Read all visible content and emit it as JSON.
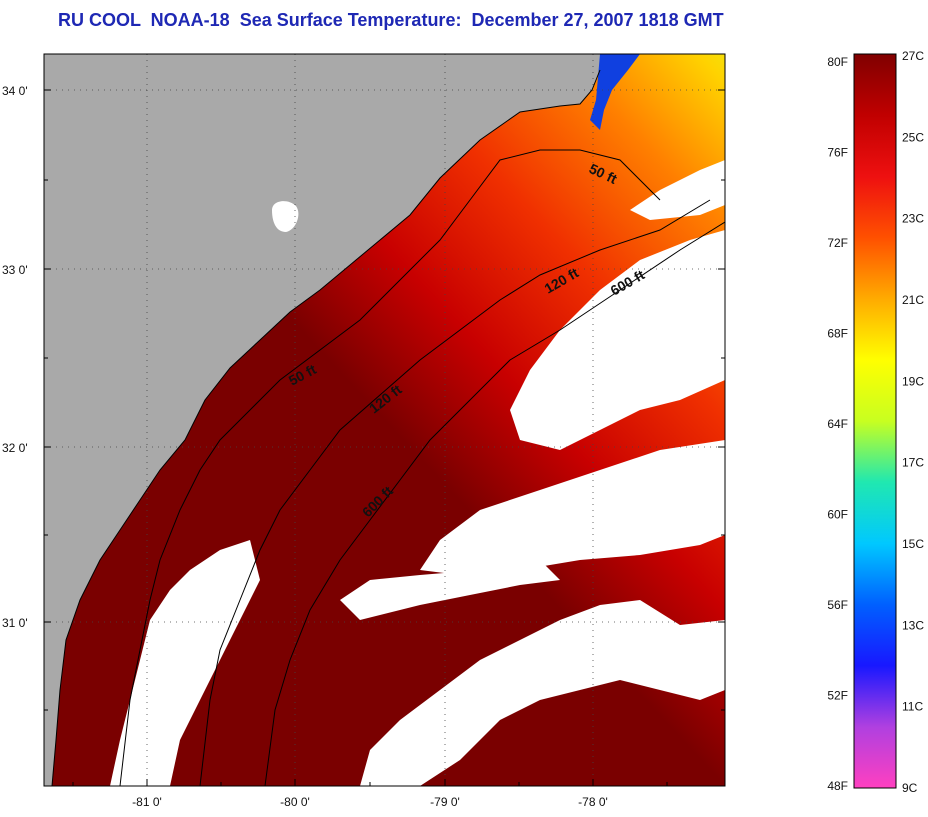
{
  "title": "RU COOL  NOAA-18  Sea Surface Temperature:  December 27, 2007 1818 GMT",
  "map": {
    "lat_ticks": [
      {
        "label": "34 0'"
      },
      {
        "label": "33 0'"
      },
      {
        "label": "32 0'"
      },
      {
        "label": "31 0'"
      }
    ],
    "lon_ticks": [
      {
        "label": "-81 0'"
      },
      {
        "label": "-80 0'"
      },
      {
        "label": "-79 0'"
      },
      {
        "label": "-78 0'"
      }
    ],
    "contours": [
      {
        "label": "50 ft"
      },
      {
        "label": "50 ft"
      },
      {
        "label": "120 ft"
      },
      {
        "label": "120 ft"
      },
      {
        "label": "600 ft"
      },
      {
        "label": "600 ft"
      }
    ],
    "colors": {
      "land": "#a9a9a9",
      "cloud": "#ffffff",
      "coast": "#000000"
    }
  },
  "colorbar": {
    "fahrenheit_labels": [
      "80F",
      "76F",
      "72F",
      "68F",
      "64F",
      "60F",
      "56F",
      "52F",
      "48F"
    ],
    "celsius_labels": [
      "27C",
      "25C",
      "23C",
      "21C",
      "19C",
      "17C",
      "15C",
      "13C",
      "11C",
      "9C"
    ],
    "stops": [
      "#ff40c0",
      "#b040e0",
      "#1818ff",
      "#0060ff",
      "#00c8ff",
      "#20e8b0",
      "#c8ff20",
      "#ffff00",
      "#ffaa00",
      "#ff5000",
      "#ee1010",
      "#c00000",
      "#800000"
    ]
  }
}
